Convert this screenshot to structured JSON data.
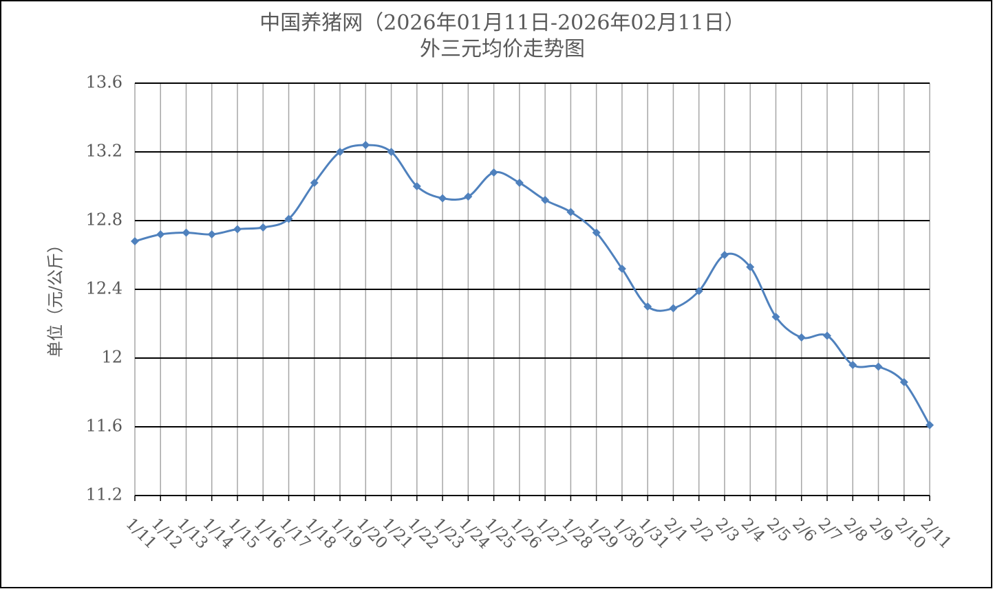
{
  "chart_data": {
    "type": "line",
    "title": "中国养猪网（2026年01月11日-2026年02月11日）",
    "subtitle": "外三元均价走势图",
    "y_label": "单位（元/公斤）",
    "categories": [
      "1/11",
      "1/12",
      "1/13",
      "1/14",
      "1/15",
      "1/16",
      "1/17",
      "1/18",
      "1/19",
      "1/20",
      "1/21",
      "1/22",
      "1/23",
      "1/24",
      "1/25",
      "1/26",
      "1/27",
      "1/28",
      "1/29",
      "1/30",
      "1/31",
      "2/1",
      "2/2",
      "2/3",
      "2/4",
      "2/5",
      "2/6",
      "2/7",
      "2/8",
      "2/9",
      "2/10",
      "2/11"
    ],
    "values": [
      12.68,
      12.72,
      12.73,
      12.72,
      12.75,
      12.76,
      12.81,
      13.02,
      13.2,
      13.24,
      13.2,
      13.0,
      12.93,
      12.94,
      13.08,
      13.02,
      12.92,
      12.85,
      12.73,
      12.52,
      12.3,
      12.29,
      12.39,
      12.6,
      12.53,
      12.24,
      12.12,
      12.13,
      11.96,
      11.95,
      11.86,
      11.61
    ],
    "color": "#4f81bd",
    "ylim": [
      11.2,
      13.6
    ],
    "yticks": [
      11.2,
      11.6,
      12,
      12.4,
      12.8,
      13.2,
      13.6
    ],
    "grid": true
  }
}
